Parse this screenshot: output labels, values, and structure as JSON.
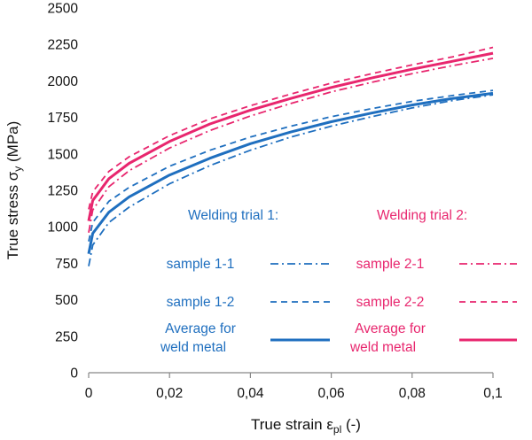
{
  "chart_data": {
    "type": "line",
    "xlabel": {
      "main": "True strain ε",
      "sub": "pl",
      "unit": " (-)"
    },
    "ylabel": {
      "main": "True stress σ",
      "sub": "y",
      "unit": " (MPa)"
    },
    "xlim": [
      0,
      0.1
    ],
    "ylim": [
      0,
      2500
    ],
    "x_ticks": [
      0,
      0.02,
      0.04,
      0.06,
      0.08,
      0.1
    ],
    "x_tick_labels": [
      "0",
      "0,02",
      "0,04",
      "0,06",
      "0,08",
      "0,1"
    ],
    "y_ticks": [
      0,
      250,
      500,
      750,
      1000,
      1250,
      1500,
      1750,
      2000,
      2250,
      2500
    ],
    "y_tick_labels": [
      "0",
      "250",
      "500",
      "750",
      "1000",
      "1250",
      "1500",
      "1750",
      "2000",
      "2250",
      "2500"
    ],
    "grid": false,
    "legend_placement": "inside-lower-right",
    "legend_groups": [
      {
        "title": "Welding trial 1:",
        "color": "#1f6fbf"
      },
      {
        "title": "Welding trial 2:",
        "color": "#e8266e"
      }
    ],
    "series": [
      {
        "name": "sample 1-1",
        "group": 0,
        "color": "#1f6fbf",
        "dash": "dashdot",
        "x": [
          0,
          0.001,
          0.005,
          0.01,
          0.02,
          0.03,
          0.04,
          0.05,
          0.06,
          0.07,
          0.08,
          0.09,
          0.1
        ],
        "y": [
          730,
          875,
          1030,
          1135,
          1295,
          1420,
          1525,
          1615,
          1690,
          1755,
          1815,
          1865,
          1905
        ]
      },
      {
        "name": "sample 1-2",
        "group": 0,
        "color": "#1f6fbf",
        "dash": "dash",
        "x": [
          0,
          0.001,
          0.005,
          0.01,
          0.02,
          0.03,
          0.04,
          0.05,
          0.06,
          0.07,
          0.08,
          0.09,
          0.1
        ],
        "y": [
          900,
          1030,
          1175,
          1270,
          1415,
          1525,
          1615,
          1690,
          1755,
          1810,
          1860,
          1900,
          1935
        ]
      },
      {
        "name": "Average for weld metal",
        "group": 0,
        "color": "#1f6fbf",
        "dash": "solid",
        "x": [
          0,
          0.001,
          0.005,
          0.01,
          0.02,
          0.03,
          0.04,
          0.05,
          0.06,
          0.07,
          0.08,
          0.09,
          0.1
        ],
        "y": [
          815,
          955,
          1100,
          1205,
          1355,
          1470,
          1570,
          1650,
          1720,
          1780,
          1835,
          1880,
          1915
        ]
      },
      {
        "name": "sample 2-1",
        "group": 1,
        "color": "#e8266e",
        "dash": "dashdot",
        "x": [
          0,
          0.001,
          0.005,
          0.01,
          0.02,
          0.03,
          0.04,
          0.05,
          0.06,
          0.07,
          0.08,
          0.09,
          0.1
        ],
        "y": [
          960,
          1115,
          1275,
          1385,
          1540,
          1660,
          1760,
          1845,
          1925,
          1990,
          2050,
          2105,
          2155
        ]
      },
      {
        "name": "sample 2-2",
        "group": 1,
        "color": "#e8266e",
        "dash": "dash",
        "x": [
          0,
          0.001,
          0.005,
          0.01,
          0.02,
          0.03,
          0.04,
          0.05,
          0.06,
          0.07,
          0.08,
          0.09,
          0.1
        ],
        "y": [
          1120,
          1240,
          1380,
          1480,
          1625,
          1740,
          1830,
          1910,
          1985,
          2050,
          2110,
          2165,
          2230
        ]
      },
      {
        "name": "Average for weld metal",
        "group": 1,
        "color": "#e8266e",
        "dash": "solid",
        "x": [
          0,
          0.001,
          0.005,
          0.01,
          0.02,
          0.03,
          0.04,
          0.05,
          0.06,
          0.07,
          0.08,
          0.09,
          0.1
        ],
        "y": [
          1040,
          1180,
          1330,
          1435,
          1585,
          1705,
          1800,
          1880,
          1955,
          2020,
          2080,
          2135,
          2190
        ]
      }
    ]
  }
}
